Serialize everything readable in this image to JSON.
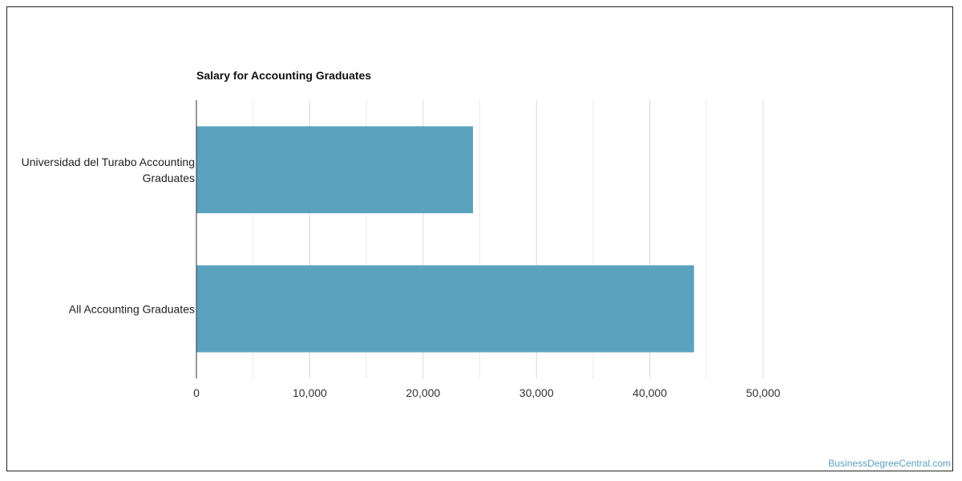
{
  "chart_data": {
    "type": "bar",
    "orientation": "horizontal",
    "title": "Salary for Accounting Graduates",
    "categories": [
      [
        "Universidad del Turabo Accounting",
        "Graduates"
      ],
      [
        "All Accounting Graduates"
      ]
    ],
    "values": [
      24400,
      43900
    ],
    "xlim": [
      0,
      50000
    ],
    "xticks": [
      0,
      10000,
      20000,
      30000,
      40000,
      50000
    ],
    "xtick_labels": [
      "0",
      "10,000",
      "20,000",
      "30,000",
      "40,000",
      "50,000"
    ],
    "minor_gridlines": [
      5000,
      15000,
      25000,
      35000,
      45000
    ],
    "grid": true,
    "bar_color": "#5ba2bf",
    "grid_color": "#d9d9d9"
  },
  "watermark": "BusinessDegreeCentral.com"
}
